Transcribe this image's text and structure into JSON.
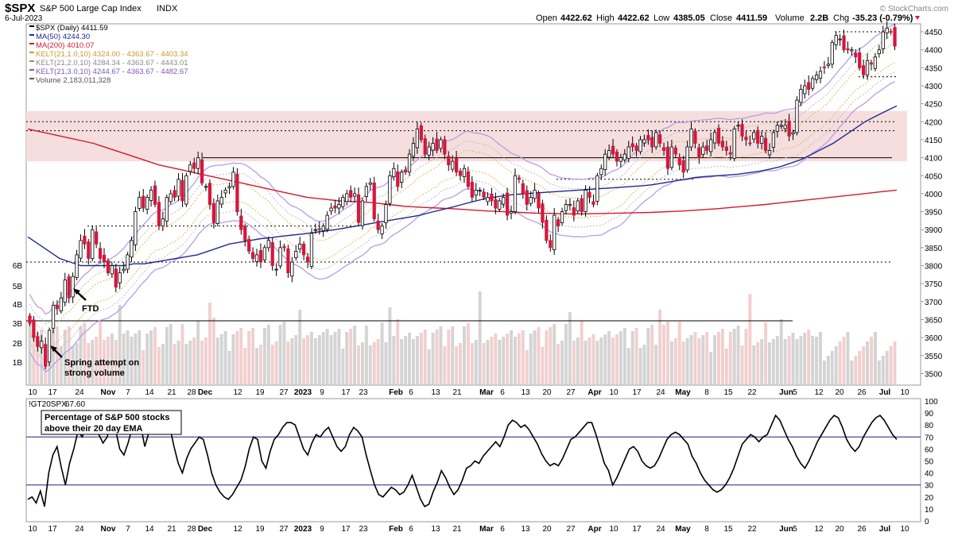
{
  "header": {
    "symbol": "$SPX",
    "name": "S&P 500 Large Cap Index",
    "exchange": "INDX",
    "date": "6-Jul-2023",
    "quote_open_label": "Open",
    "quote_open": "4422.62",
    "quote_high_label": "High",
    "quote_high": "4422.62",
    "quote_low_label": "Low",
    "quote_low": "4385.05",
    "quote_close_label": "Close",
    "quote_close": "4411.59",
    "quote_volume_label": "Volume",
    "quote_volume": "2.2B",
    "quote_chg_label": "Chg",
    "quote_chg": "-35.23 (-0.79%)",
    "copyright": "© StockCharts.com"
  },
  "colors": {
    "up_candle": "#ffffff",
    "down_candle": "#d6163d",
    "ma50": "#1d2b8f",
    "ma200": "#d3192f",
    "kelt1": "#e0b75c",
    "kelt2": "#bdbdbd",
    "kelt3": "#b89ce8",
    "zone": "#f6dede",
    "volume_up": "#d4d4d4",
    "volume_down": "#f2cfcf",
    "breadth_line": "#000000",
    "breadth_ref": "#1a237e"
  },
  "legend": [
    {
      "label": "$SPX (Daily)",
      "value": "4411.59",
      "color": "#000000"
    },
    {
      "label": "MA(50)",
      "value": "4244.30",
      "color": "#1d2b8f"
    },
    {
      "label": "MA(200)",
      "value": "4010.07",
      "color": "#d3192f"
    },
    {
      "label": "KELT(21,1.0,10)",
      "value": "4324.00 - 4363.67 - 4403.34",
      "color": "#c89a2e"
    },
    {
      "label": "KELT(21,2.0,10)",
      "value": "4284.34 - 4363.67 - 4443.01",
      "color": "#8a8a8a"
    },
    {
      "label": "KELT(21,3.0,10)",
      "value": "4244.67 - 4363.67 - 4482.67",
      "color": "#7e57c2"
    },
    {
      "label": "Volume",
      "value": "2,183,011,328",
      "color": "#555555"
    }
  ],
  "annotations": {
    "ftd": "FTD",
    "spring_line1": "Spring attempt on",
    "spring_line2": "strong volume",
    "breadth_box_line1": "Percentage of S&P 500 stocks",
    "breadth_box_line2": "above their 20 day EMA"
  },
  "lower_panel": {
    "symbol_label": "!GT20SPX",
    "value": "67.60"
  },
  "chart_data": [
    {
      "type": "candlestick",
      "title": "$SPX (Daily)",
      "ylim": [
        3470,
        4470
      ],
      "y_ticks": [
        "4450",
        "4400",
        "4350",
        "4300",
        "4250",
        "4200",
        "4150",
        "4100",
        "4050",
        "4000",
        "3950",
        "3900",
        "3850",
        "3800",
        "3750",
        "3700",
        "3650",
        "3600",
        "3550",
        "3500"
      ],
      "volume_ticks": [
        "6B",
        "5B",
        "4B",
        "3B",
        "2B",
        "1B"
      ],
      "x_ticks": [
        "10",
        "17",
        "24",
        "Nov",
        "7",
        "14",
        "21",
        "28",
        "Dec",
        "12",
        "19",
        "27",
        "2023",
        "9",
        "17",
        "23",
        "Feb",
        "6",
        "13",
        "21",
        "Mar",
        "6",
        "13",
        "20",
        "27",
        "Apr",
        "10",
        "17",
        "24",
        "May",
        "8",
        "15",
        "22",
        "Jun",
        "5",
        "12",
        "20",
        "26",
        "Jul",
        "10"
      ],
      "horizontal_levels": [
        {
          "value": 4200,
          "style": "dotted"
        },
        {
          "value": 4175,
          "style": "dotted"
        },
        {
          "value": 4100,
          "style": "solid"
        },
        {
          "value": 4450,
          "style": "dotted"
        },
        {
          "value": 4325,
          "style": "dotted"
        },
        {
          "value": 3810,
          "style": "dotted"
        },
        {
          "value": 3910,
          "style": "dotted"
        },
        {
          "value": 4040,
          "style": "dotted"
        }
      ],
      "resistance_zone": [
        4090,
        4230
      ],
      "close": [
        3640,
        3600,
        3575,
        3590,
        3520,
        3620,
        3690,
        3680,
        3710,
        3760,
        3710,
        3770,
        3830,
        3870,
        3860,
        3820,
        3900,
        3860,
        3820,
        3810,
        3780,
        3800,
        3740,
        3780,
        3790,
        3830,
        3870,
        3950,
        3990,
        3960,
        3990,
        4010,
        3970,
        3910,
        3930,
        3990,
        4000,
        3990,
        4040,
        3980,
        4050,
        4080,
        4070,
        4100,
        4030,
        4020,
        3970,
        3920,
        3980,
        3990,
        4010,
        4020,
        4060,
        3950,
        3900,
        3870,
        3840,
        3820,
        3830,
        3810,
        3850,
        3870,
        3800,
        3790,
        3850,
        3850,
        3780,
        3810,
        3840,
        3860,
        3830,
        3810,
        3890,
        3900,
        3900,
        3910,
        3940,
        3960,
        3960,
        3970,
        3990,
        4000,
        3990,
        4000,
        3920,
        3980,
        4020,
        4030,
        3930,
        3900,
        3910,
        3970,
        4050,
        4070,
        4020,
        4060,
        4060,
        4110,
        4140,
        4180,
        4150,
        4110,
        4130,
        4140,
        4120,
        4150,
        4110,
        4080,
        4090,
        4060,
        4050,
        4070,
        4020,
        3990,
        4010,
        4010,
        3990,
        3990,
        3980,
        3960,
        3980,
        3990,
        3940,
        3950,
        4050,
        4040,
        4000,
        3970,
        3990,
        4010,
        3960,
        3920,
        3870,
        3850,
        3940,
        3910,
        3950,
        3970,
        3970,
        3940,
        3980,
        3950,
        4010,
        3990,
        3970,
        4050,
        4070,
        4110,
        4120,
        4110,
        4090,
        4100,
        4110,
        4130,
        4130,
        4120,
        4150,
        4150,
        4150,
        4130,
        4170,
        4140,
        4120,
        4070,
        4130,
        4110,
        4080,
        4060,
        4130,
        4180,
        4140,
        4100,
        4130,
        4120,
        4150,
        4170,
        4140,
        4130,
        4120,
        4110,
        4180,
        4190,
        4160,
        4150,
        4140,
        4170,
        4140,
        4160,
        4120,
        4120,
        4170,
        4190,
        4190,
        4190,
        4160,
        4170,
        4260,
        4290,
        4300,
        4290,
        4320,
        4330,
        4340,
        4350,
        4360,
        4420,
        4440,
        4430,
        4400,
        4400,
        4400,
        4380,
        4350,
        4330,
        4370,
        4360,
        4380,
        4400,
        4450,
        4460,
        4450,
        4410
      ],
      "ma50": [
        3880,
        3860,
        3840,
        3820,
        3810,
        3800,
        3800,
        3800,
        3800,
        3800,
        3805,
        3805,
        3810,
        3815,
        3820,
        3825,
        3830,
        3840,
        3850,
        3860,
        3865,
        3870,
        3875,
        3878,
        3882,
        3885,
        3888,
        3892,
        3896,
        3900,
        3905,
        3910,
        3915,
        3920,
        3925,
        3930,
        3935,
        3940,
        3948,
        3955,
        3962,
        3970,
        3978,
        3985,
        3990,
        3995,
        3998,
        4000,
        4002,
        4004,
        4006,
        4008,
        4010,
        4012,
        4014,
        4016,
        4018,
        4020,
        4022,
        4025,
        4030,
        4035,
        4040,
        4045,
        4048,
        4050,
        4052,
        4054,
        4058,
        4062,
        4068,
        4075,
        4085,
        4095,
        4110,
        4125,
        4140,
        4160,
        4180,
        4200,
        4215,
        4230,
        4244
      ],
      "ma200": [
        4180,
        4170,
        4160,
        4150,
        4140,
        4125,
        4110,
        4095,
        4080,
        4070,
        4060,
        4050,
        4040,
        4030,
        4020,
        4010,
        4000,
        3990,
        3985,
        3980,
        3978,
        3975,
        3970,
        3965,
        3962,
        3960,
        3958,
        3955,
        3952,
        3950,
        3948,
        3946,
        3945,
        3944,
        3944,
        3945,
        3946,
        3947,
        3948,
        3950,
        3952,
        3955,
        3958,
        3962,
        3966,
        3970,
        3975,
        3980,
        3985,
        3990,
        3995,
        4000,
        4005,
        4010
      ],
      "volume_bars": 220
    },
    {
      "type": "line",
      "title": "!GT20SPX",
      "ylim": [
        0,
        100
      ],
      "y_ticks": [
        "100",
        "90",
        "80",
        "70",
        "60",
        "50",
        "40",
        "30",
        "20",
        "10",
        "0"
      ],
      "reference_lines": [
        70,
        30
      ],
      "values": [
        18,
        20,
        15,
        25,
        12,
        40,
        55,
        62,
        45,
        30,
        48,
        60,
        75,
        70,
        78,
        84,
        80,
        72,
        65,
        70,
        82,
        76,
        60,
        55,
        65,
        78,
        82,
        80,
        62,
        74,
        88,
        90,
        84,
        82,
        78,
        62,
        48,
        40,
        52,
        60,
        65,
        70,
        68,
        55,
        40,
        30,
        24,
        20,
        18,
        22,
        28,
        34,
        45,
        60,
        70,
        68,
        50,
        44,
        58,
        68,
        72,
        78,
        82,
        82,
        80,
        70,
        60,
        55,
        65,
        72,
        70,
        75,
        78,
        70,
        62,
        58,
        62,
        72,
        78,
        75,
        70,
        55,
        42,
        30,
        22,
        20,
        24,
        28,
        26,
        22,
        24,
        30,
        38,
        28,
        18,
        12,
        14,
        24,
        32,
        42,
        36,
        28,
        22,
        26,
        34,
        44,
        46,
        50,
        48,
        54,
        58,
        62,
        66,
        62,
        70,
        80,
        84,
        82,
        78,
        80,
        76,
        70,
        64,
        56,
        50,
        46,
        48,
        46,
        52,
        60,
        68,
        70,
        74,
        78,
        82,
        82,
        72,
        60,
        48,
        42,
        30,
        36,
        44,
        52,
        60,
        62,
        58,
        50,
        46,
        44,
        46,
        52,
        60,
        68,
        72,
        74,
        72,
        68,
        64,
        54,
        48,
        40,
        34,
        30,
        26,
        24,
        26,
        30,
        36,
        44,
        54,
        64,
        68,
        72,
        70,
        66,
        70,
        72,
        80,
        88,
        84,
        76,
        68,
        62,
        54,
        48,
        44,
        50,
        58,
        66,
        72,
        78,
        84,
        88,
        86,
        78,
        68,
        62,
        58,
        62,
        70,
        76,
        82,
        86,
        88,
        84,
        78,
        72,
        68
      ]
    }
  ]
}
